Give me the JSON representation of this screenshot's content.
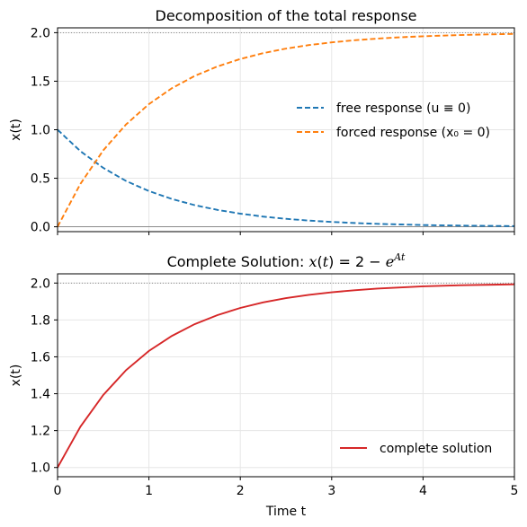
{
  "chart_data": [
    {
      "type": "line",
      "title": "Decomposition of the total response",
      "xlabel": "",
      "ylabel": "x(t)",
      "xlim": [
        0,
        5
      ],
      "ylim": [
        -0.05,
        2.05
      ],
      "xticks": [
        0,
        1,
        2,
        3,
        4,
        5
      ],
      "yticks": [
        0.0,
        0.5,
        1.0,
        1.5,
        2.0
      ],
      "ytick_labels": [
        "0.0",
        "0.5",
        "1.0",
        "1.5",
        "2.0"
      ],
      "show_xtick_labels": false,
      "grid": true,
      "reference_lines": [
        {
          "y": 2.0,
          "style": "dotted",
          "color": "#808080"
        },
        {
          "y": 0.0,
          "style": "solid",
          "color": "#808080"
        }
      ],
      "legend_placement": "center-right",
      "series": [
        {
          "name": "free response (u ≡ 0)",
          "style": "dashed",
          "color": "#1f77b4",
          "x": [
            0,
            0.25,
            0.5,
            0.75,
            1,
            1.25,
            1.5,
            1.75,
            2,
            2.25,
            2.5,
            2.75,
            3,
            3.25,
            3.5,
            3.75,
            4,
            4.25,
            4.5,
            4.75,
            5
          ],
          "y": [
            1.0,
            0.779,
            0.607,
            0.472,
            0.368,
            0.287,
            0.223,
            0.174,
            0.135,
            0.105,
            0.082,
            0.064,
            0.05,
            0.039,
            0.03,
            0.024,
            0.018,
            0.014,
            0.011,
            0.009,
            0.007
          ]
        },
        {
          "name": "forced response (x₀ = 0)",
          "style": "dashed",
          "color": "#ff7f0e",
          "x": [
            0,
            0.25,
            0.5,
            0.75,
            1,
            1.25,
            1.5,
            1.75,
            2,
            2.25,
            2.5,
            2.75,
            3,
            3.25,
            3.5,
            3.75,
            4,
            4.25,
            4.5,
            4.75,
            5
          ],
          "y": [
            0.0,
            0.442,
            0.787,
            1.055,
            1.264,
            1.427,
            1.554,
            1.652,
            1.729,
            1.789,
            1.836,
            1.872,
            1.9,
            1.922,
            1.939,
            1.953,
            1.963,
            1.971,
            1.978,
            1.983,
            1.987
          ]
        }
      ]
    },
    {
      "type": "line",
      "title": "Complete Solution: x(t) = 2 − e^{At}",
      "xlabel": "Time t",
      "ylabel": "x(t)",
      "xlim": [
        0,
        5
      ],
      "ylim": [
        0.95,
        2.05
      ],
      "xticks": [
        0,
        1,
        2,
        3,
        4,
        5
      ],
      "yticks": [
        1.0,
        1.2,
        1.4,
        1.6,
        1.8,
        2.0
      ],
      "ytick_labels": [
        "1.0",
        "1.2",
        "1.4",
        "1.6",
        "1.8",
        "2.0"
      ],
      "show_xtick_labels": true,
      "grid": true,
      "reference_lines": [
        {
          "y": 2.0,
          "style": "dotted",
          "color": "#808080"
        }
      ],
      "legend_placement": "lower-right",
      "series": [
        {
          "name": "complete solution",
          "style": "solid",
          "color": "#d62728",
          "x": [
            0,
            0.25,
            0.5,
            0.75,
            1,
            1.25,
            1.5,
            1.75,
            2,
            2.25,
            2.5,
            2.75,
            3,
            3.25,
            3.5,
            3.75,
            4,
            4.25,
            4.5,
            4.75,
            5
          ],
          "y": [
            1.0,
            1.221,
            1.393,
            1.528,
            1.632,
            1.713,
            1.777,
            1.826,
            1.865,
            1.895,
            1.918,
            1.936,
            1.95,
            1.961,
            1.97,
            1.976,
            1.982,
            1.986,
            1.989,
            1.991,
            1.993
          ]
        }
      ]
    }
  ]
}
